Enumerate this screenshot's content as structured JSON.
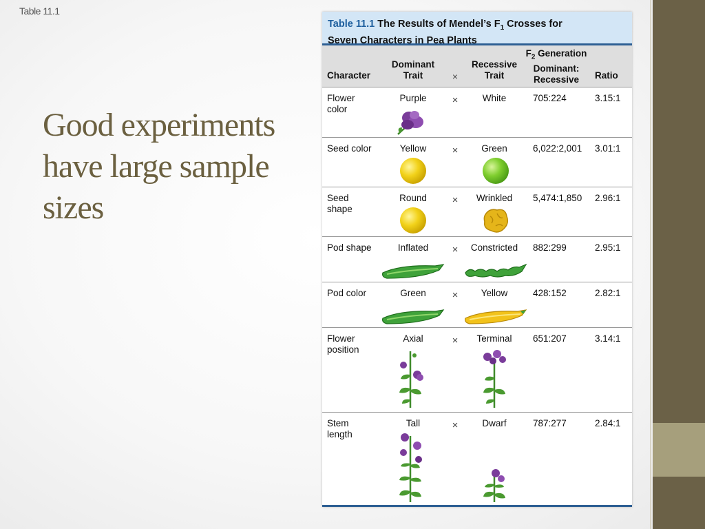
{
  "corner_label": "Table 11.1",
  "heading": "Good experiments have large sample sizes",
  "table": {
    "number": "Table 11.1",
    "title_line1": "The Results of Mendel’s F",
    "title_sub": "1",
    "title_line1_end": " Crosses for",
    "title_line2": "Seven Characters in Pea Plants",
    "headers": {
      "character": "Character",
      "dominant_1": "Dominant",
      "dominant_2": "Trait",
      "cross": "×",
      "recessive_1": "Recessive",
      "recessive_2": "Trait",
      "f2_1a": "F",
      "f2_1sub": "2",
      "f2_1b": " Generation",
      "f2_2": "Dominant:",
      "f2_3": "Recessive",
      "ratio": "Ratio"
    },
    "rows": [
      {
        "character_1": "Flower",
        "character_2": "color",
        "dominant": "Purple",
        "cross": "×",
        "recessive": "White",
        "f2": "705:224",
        "ratio": "3.15:1"
      },
      {
        "character_1": "Seed color",
        "character_2": "",
        "dominant": "Yellow",
        "cross": "×",
        "recessive": "Green",
        "f2": "6,022:2,001",
        "ratio": "3.01:1"
      },
      {
        "character_1": "Seed",
        "character_2": "shape",
        "dominant": "Round",
        "cross": "×",
        "recessive": "Wrinkled",
        "f2": "5,474:1,850",
        "ratio": "2.96:1"
      },
      {
        "character_1": "Pod shape",
        "character_2": "",
        "dominant": "Inflated",
        "cross": "×",
        "recessive": "Constricted",
        "f2": "882:299",
        "ratio": "2.95:1"
      },
      {
        "character_1": "Pod color",
        "character_2": "",
        "dominant": "Green",
        "cross": "×",
        "recessive": "Yellow",
        "f2": "428:152",
        "ratio": "2.82:1"
      },
      {
        "character_1": "Flower",
        "character_2": "position",
        "dominant": "Axial",
        "cross": "×",
        "recessive": "Terminal",
        "f2": "651:207",
        "ratio": "3.14:1"
      },
      {
        "character_1": "Stem",
        "character_2": "length",
        "dominant": "Tall",
        "cross": "×",
        "recessive": "Dwarf",
        "f2": "787:277",
        "ratio": "2.84:1"
      }
    ]
  },
  "colors": {
    "heading": "#6b6040",
    "sidebar": "#6b6147",
    "sidebar_accent": "#a69f7c",
    "table_title_bg": "#d3e6f6",
    "table_rule": "#2d5f93",
    "table_number": "#1e5f9e",
    "header_bg": "#dedede"
  }
}
